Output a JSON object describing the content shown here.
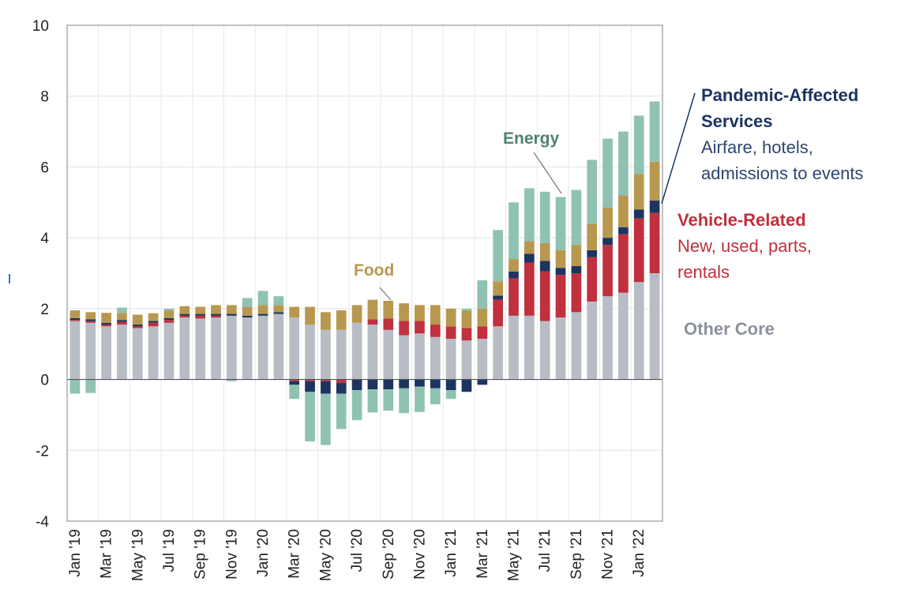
{
  "chart_data": {
    "type": "bar",
    "stacked": true,
    "title": "",
    "xlabel": "",
    "ylabel": "",
    "ylim": [
      -4,
      10
    ],
    "yticks": [
      -4,
      -2,
      0,
      2,
      4,
      6,
      8,
      10
    ],
    "ytick_labels": [
      "-4",
      "-2",
      "0",
      "2",
      "4",
      "6",
      "8",
      "10"
    ],
    "grid": true,
    "categories": [
      "Jan '19",
      "Feb '19",
      "Mar '19",
      "Apr '19",
      "May '19",
      "Jun '19",
      "Jul '19",
      "Aug '19",
      "Sep '19",
      "Oct '19",
      "Nov '19",
      "Dec '19",
      "Jan '20",
      "Feb '20",
      "Mar '20",
      "Apr '20",
      "May '20",
      "Jun '20",
      "Jul '20",
      "Aug '20",
      "Sep '20",
      "Oct '20",
      "Nov '20",
      "Dec '20",
      "Jan '21",
      "Feb '21",
      "Mar '21",
      "Apr '21",
      "May '21",
      "Jun '21",
      "Jul '21",
      "Aug '21",
      "Sep '21",
      "Oct '21",
      "Nov '21",
      "Dec '21",
      "Jan '22",
      "Feb '22"
    ],
    "xtick_labels": [
      "Jan '19",
      "Mar '19",
      "May '19",
      "Jul '19",
      "Sep '19",
      "Nov '19",
      "Jan '20",
      "Mar '20",
      "May '20",
      "Jul '20",
      "Sep '20",
      "Nov '20",
      "Jan '21",
      "Mar '21",
      "May '21",
      "Jul '21",
      "Sep '21",
      "Nov '21",
      "Jan '22"
    ],
    "series": [
      {
        "name": "Other Core",
        "color": "#b8bcc4",
        "values": [
          1.65,
          1.6,
          1.5,
          1.55,
          1.45,
          1.5,
          1.6,
          1.75,
          1.72,
          1.75,
          1.8,
          1.75,
          1.8,
          1.85,
          1.75,
          1.55,
          1.4,
          1.4,
          1.6,
          1.55,
          1.4,
          1.25,
          1.3,
          1.2,
          1.15,
          1.1,
          1.15,
          1.5,
          1.8,
          1.8,
          1.65,
          1.75,
          1.9,
          2.2,
          2.35,
          2.45,
          2.75,
          3.0
        ]
      },
      {
        "name": "Vehicle-Related",
        "color": "#c0303d",
        "values": [
          0.03,
          0.05,
          0.05,
          0.08,
          0.05,
          0.1,
          0.08,
          0.05,
          0.08,
          0.05,
          0.0,
          0.0,
          0.0,
          0.0,
          -0.05,
          -0.05,
          -0.05,
          -0.1,
          0.0,
          0.15,
          0.32,
          0.4,
          0.35,
          0.35,
          0.35,
          0.35,
          0.35,
          0.75,
          1.05,
          1.5,
          1.4,
          1.2,
          1.1,
          1.25,
          1.45,
          1.65,
          1.8,
          1.7
        ]
      },
      {
        "name": "Pandemic-Affected Services",
        "color": "#1d3461",
        "values": [
          0.05,
          0.05,
          0.05,
          0.05,
          0.05,
          0.05,
          0.05,
          0.05,
          0.05,
          0.05,
          0.05,
          0.05,
          0.05,
          0.05,
          -0.1,
          -0.3,
          -0.35,
          -0.3,
          -0.3,
          -0.28,
          -0.28,
          -0.25,
          -0.2,
          -0.25,
          -0.3,
          -0.35,
          -0.15,
          0.12,
          0.2,
          0.25,
          0.3,
          0.2,
          0.2,
          0.2,
          0.2,
          0.2,
          0.25,
          0.35
        ]
      },
      {
        "name": "Food",
        "color": "#b8974e",
        "values": [
          0.22,
          0.2,
          0.28,
          0.2,
          0.28,
          0.22,
          0.22,
          0.22,
          0.2,
          0.25,
          0.25,
          0.25,
          0.25,
          0.2,
          0.3,
          0.5,
          0.5,
          0.55,
          0.5,
          0.55,
          0.5,
          0.5,
          0.45,
          0.55,
          0.5,
          0.5,
          0.5,
          0.4,
          0.35,
          0.35,
          0.5,
          0.5,
          0.6,
          0.75,
          0.85,
          0.9,
          1.0,
          1.1
        ]
      },
      {
        "name": "Energy",
        "color": "#8fc2b3",
        "values": [
          -0.4,
          -0.38,
          0.0,
          0.15,
          0.0,
          0.0,
          0.05,
          0.0,
          0.0,
          0.0,
          -0.05,
          0.25,
          0.4,
          0.25,
          -0.4,
          -1.4,
          -1.45,
          -1.0,
          -0.85,
          -0.65,
          -0.6,
          -0.7,
          -0.72,
          -0.45,
          -0.25,
          0.05,
          0.8,
          1.45,
          1.6,
          1.5,
          1.45,
          1.5,
          1.55,
          1.8,
          1.95,
          1.8,
          1.65,
          1.7
        ]
      }
    ],
    "annotations": [
      {
        "label": "Energy",
        "color": "#4e8270"
      },
      {
        "label": "Food",
        "color": "#b8974e"
      }
    ],
    "legend": [
      {
        "title": "Pandemic-Affected",
        "title2": "Services",
        "subtitle": [
          "Airfare, hotels,",
          "admissions to events"
        ],
        "title_color": "#1d3461",
        "sub_color": "#2e4670"
      },
      {
        "title": "Vehicle-Related",
        "subtitle": [
          "New, used, parts,",
          "rentals"
        ],
        "title_color": "#c0303d",
        "sub_color": "#c0303d"
      },
      {
        "title": "Other Core",
        "title_color": "#8b929c"
      }
    ]
  }
}
